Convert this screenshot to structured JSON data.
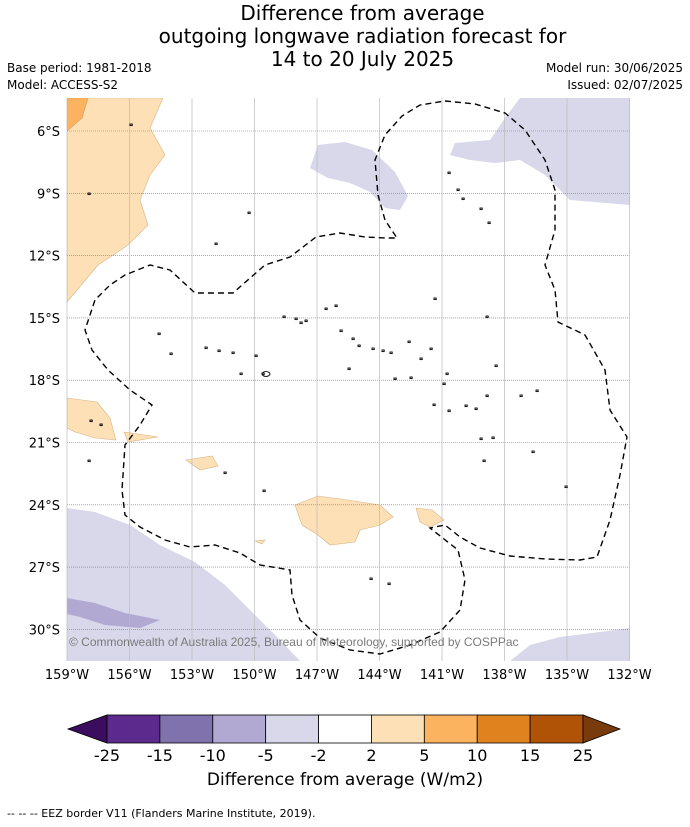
{
  "title": {
    "line1": "Difference from average",
    "line2": "outgoing longwave radiation forecast for",
    "line3": "14 to 20 July 2025"
  },
  "meta": {
    "base_period": "Base period: 1981-2018",
    "model": "Model: ACCESS-S2",
    "model_run": "Model run: 30/06/2025",
    "issued": "Issued: 02/07/2025"
  },
  "map": {
    "lat_labels": [
      "6°S",
      "9°S",
      "12°S",
      "15°S",
      "18°S",
      "21°S",
      "24°S",
      "27°S",
      "30°S"
    ],
    "lon_labels": [
      "159°W",
      "156°W",
      "153°W",
      "150°W",
      "147°W",
      "144°W",
      "141°W",
      "138°W",
      "135°W",
      "132°W"
    ],
    "copyright": "© Commonwealth of Australia 2025, Bureau of Meteorology, supported by COSPPac"
  },
  "colorbar": {
    "ticks": [
      "-25",
      "-15",
      "-10",
      "-5",
      "-2",
      "2",
      "5",
      "10",
      "15",
      "25"
    ],
    "colors": [
      "#3a0d5e",
      "#5b2a8c",
      "#8072ad",
      "#b1a9d2",
      "#d8d8ea",
      "#ffffff",
      "#fde0b6",
      "#fcb35f",
      "#e0821d",
      "#b05307",
      "#7a3b0c"
    ],
    "label": "Difference from average (W/m2)"
  },
  "footer": "--  --  -- EEZ border V11 (Flanders Marine Institute, 2019)."
}
